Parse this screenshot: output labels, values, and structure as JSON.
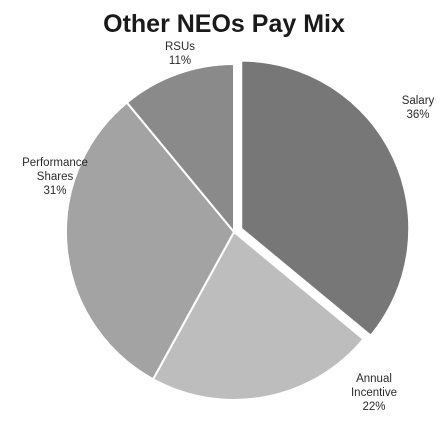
{
  "chart_data": {
    "type": "pie",
    "title": "Other NEOs Pay Mix",
    "slices": [
      {
        "name": "Salary",
        "value": 36,
        "label": [
          "Salary",
          "36%"
        ],
        "color": "#777777",
        "exploded": true
      },
      {
        "name": "Annual Incentive",
        "value": 22,
        "label": [
          "Annual",
          "Incentive",
          "22%"
        ],
        "color": "#bdbdbd",
        "exploded": false
      },
      {
        "name": "Performance Shares",
        "value": 31,
        "label": [
          "Performance",
          "Shares",
          "31%"
        ],
        "color": "#a3a3a3",
        "exploded": false
      },
      {
        "name": "RSUs",
        "value": 11,
        "label": [
          "RSUs",
          "11%"
        ],
        "color": "#8a8a8a",
        "exploded": false
      }
    ]
  }
}
